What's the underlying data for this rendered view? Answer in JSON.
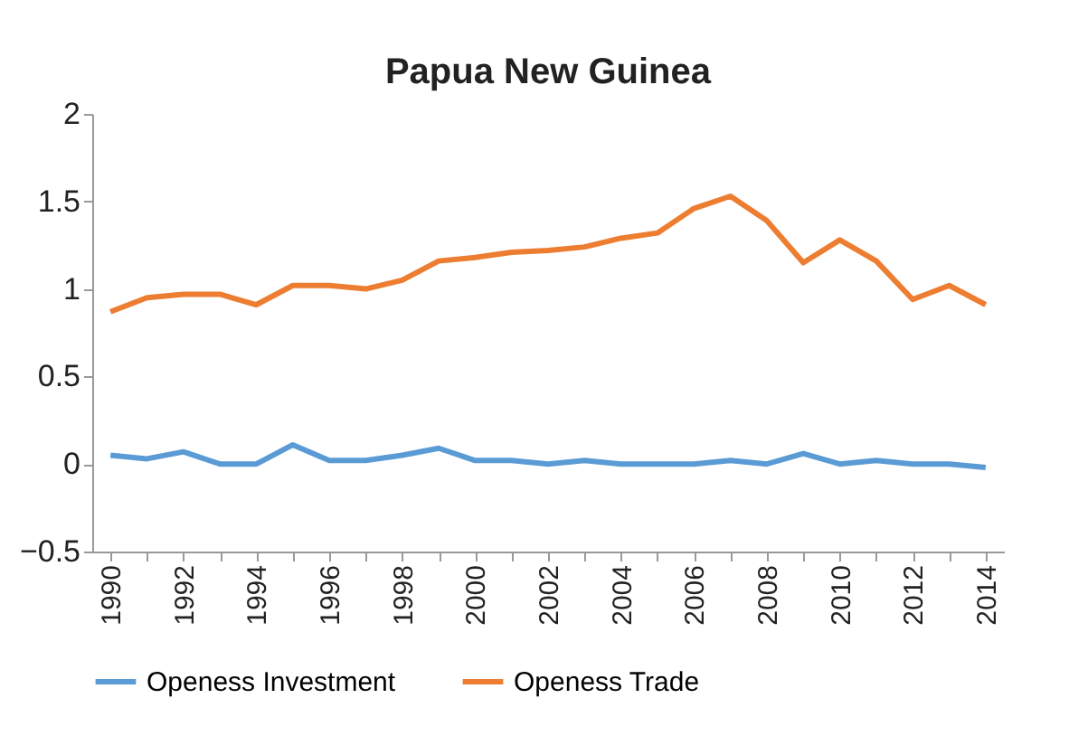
{
  "chart_data": {
    "type": "line",
    "title": "Papua New Guinea",
    "categories": [
      "1990",
      null,
      "1992",
      null,
      "1994",
      null,
      "1996",
      null,
      "1998",
      null,
      "2000",
      null,
      "2002",
      null,
      "2004",
      null,
      "2006",
      null,
      "2008",
      null,
      "2010",
      null,
      "2012",
      null,
      "2014"
    ],
    "series": [
      {
        "name": "Openess Investment",
        "color": "#5b9bd5",
        "values": [
          0.05,
          0.03,
          0.07,
          0.0,
          0.0,
          0.11,
          0.02,
          0.02,
          0.05,
          0.09,
          0.02,
          0.02,
          0.0,
          0.02,
          0.0,
          0.0,
          0.0,
          0.02,
          0.0,
          0.06,
          0.0,
          0.02,
          0.0,
          0.0,
          -0.02
        ]
      },
      {
        "name": "Openess Trade",
        "color": "#ed7d31",
        "values": [
          0.87,
          0.95,
          0.97,
          0.97,
          0.91,
          1.02,
          1.02,
          1.0,
          1.05,
          1.16,
          1.18,
          1.21,
          1.22,
          1.24,
          1.29,
          1.32,
          1.46,
          1.53,
          1.39,
          1.15,
          1.28,
          1.16,
          0.94,
          1.02,
          0.91
        ]
      }
    ],
    "ylim": [
      -0.5,
      2
    ],
    "yticks": [
      -0.5,
      0,
      0.5,
      1,
      1.5,
      2
    ],
    "grid": false,
    "legend": "bottom",
    "marker": "none",
    "line_style": "solid"
  }
}
